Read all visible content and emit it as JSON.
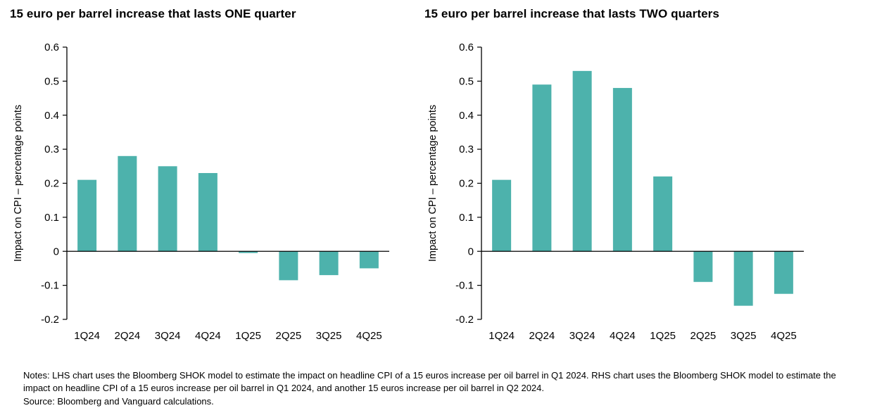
{
  "chart_data": [
    {
      "type": "bar",
      "title": "15 euro per barrel increase that lasts ONE quarter",
      "ylabel": "Impact on CPI – percentage points",
      "xlabel": "",
      "categories": [
        "1Q24",
        "2Q24",
        "3Q24",
        "4Q24",
        "1Q25",
        "2Q25",
        "3Q25",
        "4Q25"
      ],
      "values": [
        0.21,
        0.28,
        0.25,
        0.23,
        -0.005,
        -0.085,
        -0.07,
        -0.05
      ],
      "ylim": [
        -0.2,
        0.6
      ],
      "yticks": [
        0.6,
        0.5,
        0.4,
        0.3,
        0.2,
        0.1,
        0,
        -0.1,
        -0.2
      ],
      "bar_color": "#4db2ac",
      "grid": false,
      "legend": "none"
    },
    {
      "type": "bar",
      "title": "15 euro per barrel increase that lasts TWO quarters",
      "ylabel": "Impact on CPI – percentage points",
      "xlabel": "",
      "categories": [
        "1Q24",
        "2Q24",
        "3Q24",
        "4Q24",
        "1Q25",
        "2Q25",
        "3Q25",
        "4Q25"
      ],
      "values": [
        0.21,
        0.49,
        0.53,
        0.48,
        0.22,
        -0.09,
        -0.16,
        -0.125
      ],
      "ylim": [
        -0.2,
        0.6
      ],
      "yticks": [
        0.6,
        0.5,
        0.4,
        0.3,
        0.2,
        0.1,
        0,
        -0.1,
        -0.2
      ],
      "bar_color": "#4db2ac",
      "grid": false,
      "legend": "none"
    }
  ],
  "footer": {
    "notes": "Notes: LHS chart uses the Bloomberg SHOK model to estimate the impact on headline CPI of a 15 euros increase per oil barrel in Q1 2024. RHS chart uses the Bloomberg SHOK model to estimate the impact on headline CPI of a 15 euros increase per oil barrel in Q1 2024, and another 15 euros increase per oil barrel in Q2 2024.",
    "source": "Source: Bloomberg and Vanguard calculations."
  }
}
